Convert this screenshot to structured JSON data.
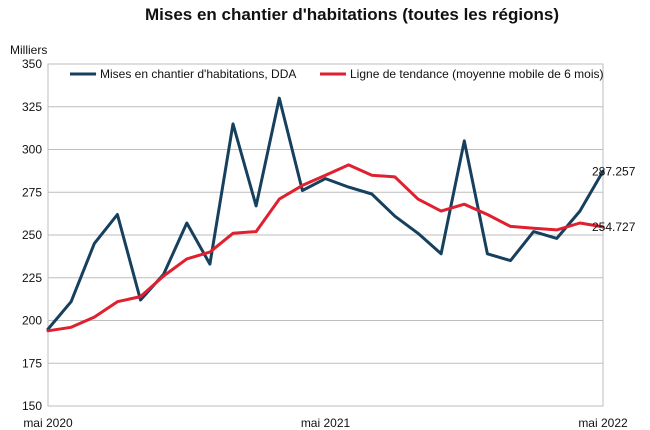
{
  "chart_data": {
    "type": "line",
    "title": "Mises en chantier d'habitations (toutes les régions)",
    "ylabel": "Milliers",
    "xlabel": "",
    "ylim": [
      150,
      350
    ],
    "y_ticks": [
      150,
      175,
      200,
      225,
      250,
      275,
      300,
      325,
      350
    ],
    "x_tick_labels": [
      {
        "index": 0,
        "label": "mai 2020"
      },
      {
        "index": 12,
        "label": "mai 2021"
      },
      {
        "index": 24,
        "label": "mai 2022"
      }
    ],
    "grid": true,
    "legend_position": "top",
    "x": [
      "2020-05",
      "2020-06",
      "2020-07",
      "2020-08",
      "2020-09",
      "2020-10",
      "2020-11",
      "2020-12",
      "2021-01",
      "2021-02",
      "2021-03",
      "2021-04",
      "2021-05",
      "2021-06",
      "2021-07",
      "2021-08",
      "2021-09",
      "2021-10",
      "2021-11",
      "2021-12",
      "2022-01",
      "2022-02",
      "2022-03",
      "2022-04",
      "2022-05"
    ],
    "series": [
      {
        "name": "Mises en chantier d'habitations, DDA",
        "color": "#16405e",
        "values": [
          195,
          211,
          245,
          262,
          212,
          227,
          257,
          233,
          315,
          267,
          330,
          276,
          283,
          278,
          274,
          261,
          251,
          239,
          305,
          239,
          235,
          252,
          248,
          264,
          287.257
        ],
        "end_label": "287.257"
      },
      {
        "name": "Ligne de tendance (moyenne mobile de 6 mois)",
        "color": "#e0202e",
        "values": [
          194,
          196,
          202,
          211,
          214,
          226,
          236,
          240,
          251,
          252,
          271,
          279,
          285,
          291,
          285,
          284,
          271,
          264,
          268,
          262,
          255,
          254,
          253,
          257,
          254.727
        ],
        "end_label": "254.727"
      }
    ]
  }
}
